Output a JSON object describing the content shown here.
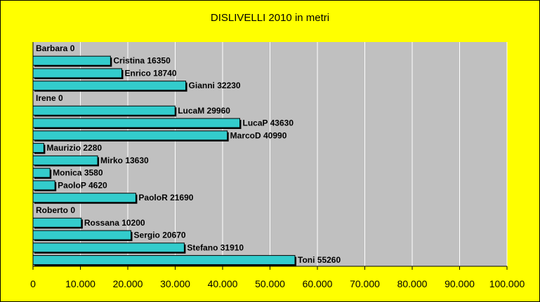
{
  "colors": {
    "background": "#ffff00",
    "plot_area": "#c0c0c0",
    "bar_fill": "#33cccc",
    "bar_edge": "#000000",
    "grid": "#ffffff"
  },
  "chart_data": {
    "type": "bar",
    "orientation": "horizontal",
    "title": "DISLIVELLI 2010 in metri",
    "xlabel": "",
    "ylabel": "",
    "xlim": [
      0,
      100000
    ],
    "grid": true,
    "legend": "none",
    "x_ticks": [
      0,
      10000,
      20000,
      30000,
      40000,
      50000,
      60000,
      70000,
      80000,
      90000,
      100000
    ],
    "x_tick_labels": [
      "0",
      "10.000",
      "20.000",
      "30.000",
      "40.000",
      "50.000",
      "60.000",
      "70.000",
      "80.000",
      "90.000",
      "100.000"
    ],
    "categories": [
      "Barbara",
      "Cristina",
      "Enrico",
      "Gianni",
      "Irene",
      "LucaM",
      "LucaP",
      "MarcoD",
      "Maurizio",
      "Mirko",
      "Monica",
      "PaoloP",
      "PaoloR",
      "Roberto",
      "Rossana",
      "Sergio",
      "Stefano",
      "Toni"
    ],
    "values": [
      0,
      16350,
      18740,
      32230,
      0,
      29960,
      43630,
      40990,
      2280,
      13630,
      3580,
      4620,
      21690,
      0,
      10200,
      20670,
      31910,
      55260
    ],
    "data_labels": [
      "Barbara 0",
      "Cristina 16350",
      "Enrico 18740",
      "Gianni 32230",
      "Irene 0",
      "LucaM 29960",
      "LucaP 43630",
      "MarcoD 40990",
      "Maurizio 2280",
      "Mirko 13630",
      "Monica 3580",
      "PaoloP 4620",
      "PaoloR 21690",
      "Roberto 0",
      "Rossana 10200",
      "Sergio 20670",
      "Stefano 31910",
      "Toni 55260"
    ]
  }
}
